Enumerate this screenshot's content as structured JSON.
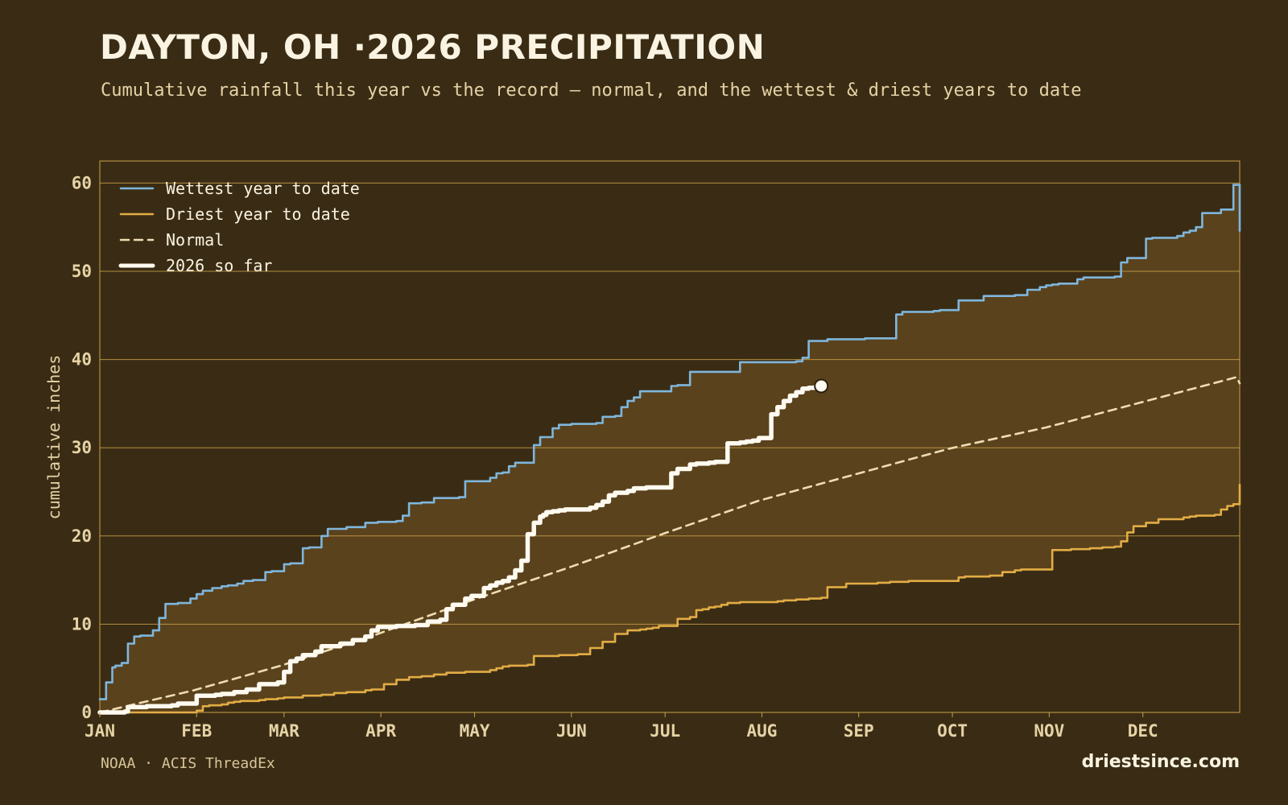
{
  "header": {
    "title": "DAYTON, OH ·2026 PRECIPITATION",
    "subtitle": "Cumulative rainfall this year vs the record — normal, and the wettest & driest years to date"
  },
  "footer": {
    "source": "NOAA · ACIS ThreadEx",
    "site": "driestsince.com"
  },
  "colors": {
    "background": "#3a2c14",
    "band_fill": "#5a421d",
    "gridline": "#c9a04a",
    "wettest": "#7fb6dc",
    "driest": "#e3ad45",
    "normal": "#efdcb2",
    "current": "#fffaf0"
  },
  "chart_data": {
    "type": "line",
    "title": "DAYTON, OH ·2026 PRECIPITATION",
    "xlabel": "",
    "ylabel": "cumulative inches",
    "ylim": [
      0,
      62.5
    ],
    "xlim_day_of_year": [
      1,
      366
    ],
    "y_ticks": [
      0,
      10,
      20,
      30,
      40,
      50,
      60
    ],
    "x_tick_labels": [
      "JAN",
      "FEB",
      "MAR",
      "APR",
      "MAY",
      "JUN",
      "JUL",
      "AUG",
      "SEP",
      "OCT",
      "NOV",
      "DEC"
    ],
    "x_tick_days": [
      1,
      32,
      60,
      91,
      121,
      152,
      182,
      213,
      244,
      274,
      305,
      335
    ],
    "grid": "horizontal",
    "legend_position": "top-left",
    "band_between": [
      "Wettest year to date",
      "Driest year to date"
    ],
    "series": [
      {
        "name": "Wettest year to date",
        "style": "solid",
        "x": [
          1,
          3,
          5,
          6,
          8,
          10,
          12,
          14,
          16,
          18,
          20,
          22,
          24,
          26,
          30,
          32,
          34,
          37,
          40,
          42,
          44,
          45,
          47,
          50,
          54,
          56,
          60,
          62,
          66,
          68,
          72,
          74,
          78,
          80,
          86,
          90,
          96,
          98,
          100,
          104,
          108,
          112,
          116,
          118,
          126,
          128,
          130,
          132,
          134,
          140,
          142,
          146,
          148,
          150,
          152,
          155,
          157,
          160,
          162,
          164,
          166,
          168,
          170,
          172,
          174,
          184,
          186,
          190,
          194,
          196,
          198,
          202,
          206,
          210,
          212,
          218,
          224,
          226,
          228,
          232,
          234,
          246,
          256,
          258,
          268,
          270,
          274,
          276,
          284,
          292,
          294,
          298,
          302,
          304,
          306,
          308,
          314,
          316,
          326,
          328,
          330,
          336,
          338,
          346,
          348,
          350,
          352,
          354,
          360,
          364,
          366
        ],
        "y": [
          1.5,
          3.4,
          5.1,
          5.3,
          5.6,
          7.8,
          8.6,
          8.7,
          8.7,
          9.3,
          10.7,
          12.3,
          12.3,
          12.4,
          12.9,
          13.4,
          13.8,
          14.1,
          14.3,
          14.4,
          14.4,
          14.6,
          14.9,
          15.0,
          15.9,
          16.0,
          16.8,
          16.9,
          18.6,
          18.7,
          20.0,
          20.8,
          20.8,
          21.0,
          21.5,
          21.6,
          21.7,
          22.3,
          23.7,
          23.8,
          24.3,
          24.3,
          24.4,
          26.2,
          26.6,
          27.1,
          27.2,
          27.9,
          28.3,
          30.3,
          31.2,
          32.2,
          32.6,
          32.6,
          32.7,
          32.7,
          32.7,
          32.8,
          33.5,
          33.5,
          33.6,
          34.6,
          35.3,
          35.7,
          36.4,
          37.0,
          37.1,
          38.6,
          38.6,
          38.6,
          38.6,
          38.6,
          39.7,
          39.7,
          39.7,
          39.7,
          39.8,
          40.2,
          42.1,
          42.1,
          42.3,
          42.4,
          45.1,
          45.4,
          45.5,
          45.6,
          45.6,
          46.7,
          47.2,
          47.2,
          47.3,
          47.9,
          48.2,
          48.4,
          48.5,
          48.6,
          49.1,
          49.3,
          49.4,
          51.0,
          51.5,
          53.7,
          53.8,
          54.0,
          54.4,
          54.6,
          55.0,
          56.6,
          57.0,
          59.8,
          54.6
        ]
      },
      {
        "name": "Driest year to date",
        "style": "solid",
        "x": [
          1,
          30,
          32,
          34,
          36,
          40,
          42,
          44,
          46,
          52,
          54,
          58,
          60,
          66,
          72,
          76,
          80,
          86,
          88,
          92,
          96,
          100,
          104,
          108,
          112,
          118,
          126,
          128,
          130,
          132,
          138,
          140,
          148,
          150,
          154,
          158,
          162,
          166,
          170,
          174,
          176,
          178,
          180,
          186,
          190,
          192,
          194,
          196,
          198,
          200,
          202,
          206,
          208,
          210,
          212,
          214,
          218,
          220,
          224,
          228,
          232,
          234,
          240,
          250,
          254,
          260,
          262,
          276,
          278,
          280,
          282,
          284,
          286,
          290,
          294,
          296,
          298,
          300,
          302,
          304,
          306,
          312,
          314,
          318,
          322,
          326,
          328,
          330,
          332,
          336,
          340,
          348,
          350,
          352,
          354,
          358,
          360,
          362,
          364,
          366
        ],
        "y": [
          0,
          0,
          0.2,
          0.7,
          0.8,
          0.9,
          1.1,
          1.2,
          1.3,
          1.4,
          1.5,
          1.6,
          1.7,
          1.9,
          2.0,
          2.2,
          2.3,
          2.5,
          2.6,
          3.2,
          3.7,
          4.0,
          4.1,
          4.3,
          4.5,
          4.6,
          4.8,
          5.0,
          5.2,
          5.3,
          5.4,
          6.4,
          6.5,
          6.5,
          6.6,
          7.3,
          8.0,
          8.9,
          9.3,
          9.4,
          9.5,
          9.6,
          9.8,
          10.6,
          10.8,
          11.6,
          11.7,
          11.9,
          12.0,
          12.2,
          12.4,
          12.5,
          12.5,
          12.5,
          12.5,
          12.5,
          12.6,
          12.7,
          12.8,
          12.9,
          13.0,
          14.2,
          14.6,
          14.7,
          14.8,
          14.9,
          14.9,
          15.3,
          15.4,
          15.4,
          15.4,
          15.4,
          15.5,
          15.9,
          16.1,
          16.2,
          16.2,
          16.2,
          16.2,
          16.2,
          18.4,
          18.5,
          18.5,
          18.6,
          18.7,
          18.8,
          19.4,
          20.4,
          21.1,
          21.5,
          21.9,
          22.1,
          22.2,
          22.3,
          22.3,
          22.4,
          23.0,
          23.4,
          23.6,
          25.8
        ]
      },
      {
        "name": "Normal",
        "style": "dashed",
        "x": [
          1,
          31,
          59,
          90,
          120,
          151,
          181,
          212,
          243,
          273,
          304,
          334,
          365,
          366
        ],
        "y": [
          0,
          2.5,
          5.3,
          8.9,
          12.7,
          16.4,
          20.2,
          24.0,
          27.0,
          29.9,
          32.3,
          35.1,
          38.0,
          37.3
        ]
      },
      {
        "name": "2026 so far",
        "style": "thick",
        "x": [
          1,
          9,
          10,
          16,
          24,
          26,
          32,
          38,
          40,
          44,
          48,
          52,
          58,
          60,
          62,
          64,
          66,
          70,
          72,
          78,
          80,
          82,
          86,
          88,
          90,
          96,
          98,
          102,
          106,
          110,
          112,
          114,
          118,
          120,
          124,
          126,
          128,
          130,
          132,
          134,
          136,
          138,
          140,
          142,
          143,
          144,
          146,
          148,
          150,
          154,
          158,
          160,
          162,
          164,
          166,
          170,
          172,
          176,
          178,
          182,
          184,
          186,
          190,
          192,
          196,
          198,
          202,
          206,
          208,
          210,
          212,
          216,
          218,
          220,
          222,
          224,
          226,
          228,
          230,
          232
        ],
        "y": [
          0,
          0.1,
          0.6,
          0.7,
          0.8,
          1.0,
          1.9,
          2.0,
          2.1,
          2.3,
          2.6,
          3.2,
          3.4,
          4.6,
          5.8,
          6.1,
          6.5,
          6.9,
          7.5,
          7.8,
          7.8,
          8.2,
          8.6,
          9.3,
          9.7,
          9.8,
          9.8,
          9.9,
          10.3,
          10.5,
          11.7,
          12.2,
          12.9,
          13.2,
          14.1,
          14.4,
          14.7,
          14.9,
          15.3,
          16.1,
          17.2,
          20.2,
          21.5,
          22.2,
          22.4,
          22.7,
          22.8,
          22.9,
          23.0,
          23.0,
          23.2,
          23.5,
          23.9,
          24.6,
          24.9,
          25.1,
          25.4,
          25.5,
          25.5,
          25.5,
          27.1,
          27.6,
          28.1,
          28.2,
          28.3,
          28.4,
          30.5,
          30.6,
          30.7,
          30.8,
          31.1,
          33.8,
          34.6,
          35.3,
          35.9,
          36.3,
          36.7,
          36.8,
          36.9,
          37.0
        ]
      }
    ],
    "annotations": [
      {
        "series": "2026 so far",
        "marker": "end-point",
        "x": 232,
        "y": 37.0
      }
    ]
  }
}
